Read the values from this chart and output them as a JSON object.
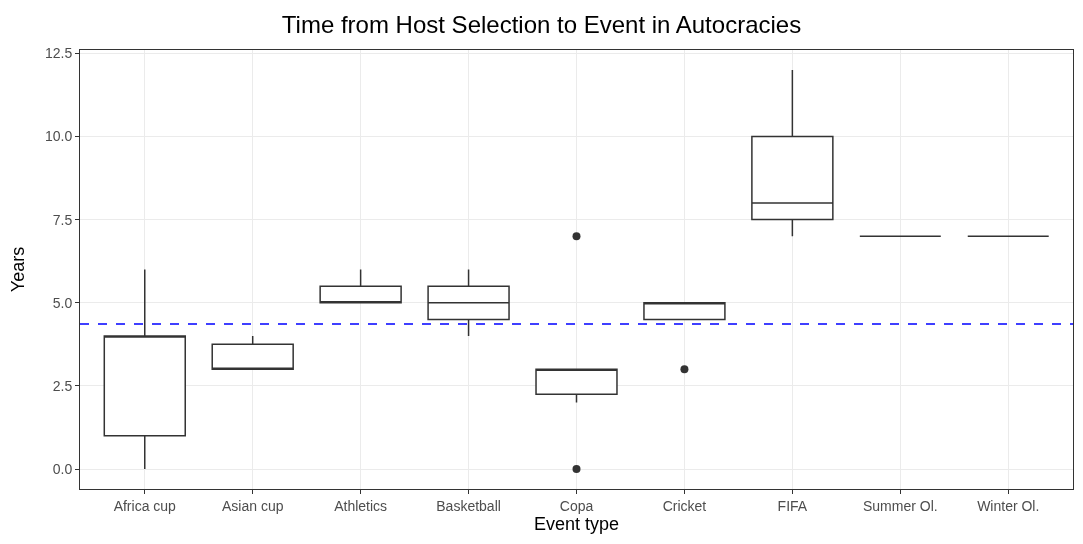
{
  "chart_data": {
    "type": "box",
    "title": "Time from Host Selection to Event in Autocracies",
    "xlabel": "Event type",
    "ylabel": "Years",
    "categories": [
      "Africa cup",
      "Asian cup",
      "Athletics",
      "Basketball",
      "Copa",
      "Cricket",
      "FIFA",
      "Summer Ol.",
      "Winter Ol."
    ],
    "boxes": [
      {
        "low": 0,
        "q1": 1,
        "median": 4,
        "q3": 4,
        "high": 6
      },
      {
        "low": 3,
        "q1": 3,
        "median": 3,
        "q3": 3.75,
        "high": 4
      },
      {
        "low": 5,
        "q1": 5,
        "median": 5,
        "q3": 5.5,
        "high": 6
      },
      {
        "low": 4,
        "q1": 4.5,
        "median": 5,
        "q3": 5.5,
        "high": 6
      },
      {
        "low": 2,
        "q1": 2.25,
        "median": 3,
        "q3": 3,
        "high": 3,
        "outliers": [
          0,
          7
        ]
      },
      {
        "low": 4.5,
        "q1": 4.5,
        "median": 5,
        "q3": 5,
        "high": 5,
        "outliers": [
          3
        ]
      },
      {
        "low": 7,
        "q1": 7.5,
        "median": 8,
        "q3": 10,
        "high": 12
      },
      {
        "low": 7,
        "q1": 7,
        "median": 7,
        "q3": 7,
        "high": 7
      },
      {
        "low": 7,
        "q1": 7,
        "median": 7,
        "q3": 7,
        "high": 7
      }
    ],
    "ylim": [
      -0.6,
      12.6
    ],
    "yticks": [
      {
        "value": 0,
        "label": "0.0"
      },
      {
        "value": 2.5,
        "label": "2.5"
      },
      {
        "value": 5,
        "label": "5.0"
      },
      {
        "value": 7.5,
        "label": "7.5"
      },
      {
        "value": 10,
        "label": "10.0"
      },
      {
        "value": 12.5,
        "label": "12.5"
      }
    ],
    "ref_lines": [
      {
        "axis": "y",
        "value": 4.36,
        "color": "#0000ff",
        "line_style": "dashed"
      }
    ],
    "color": "#333333",
    "grid": true
  }
}
